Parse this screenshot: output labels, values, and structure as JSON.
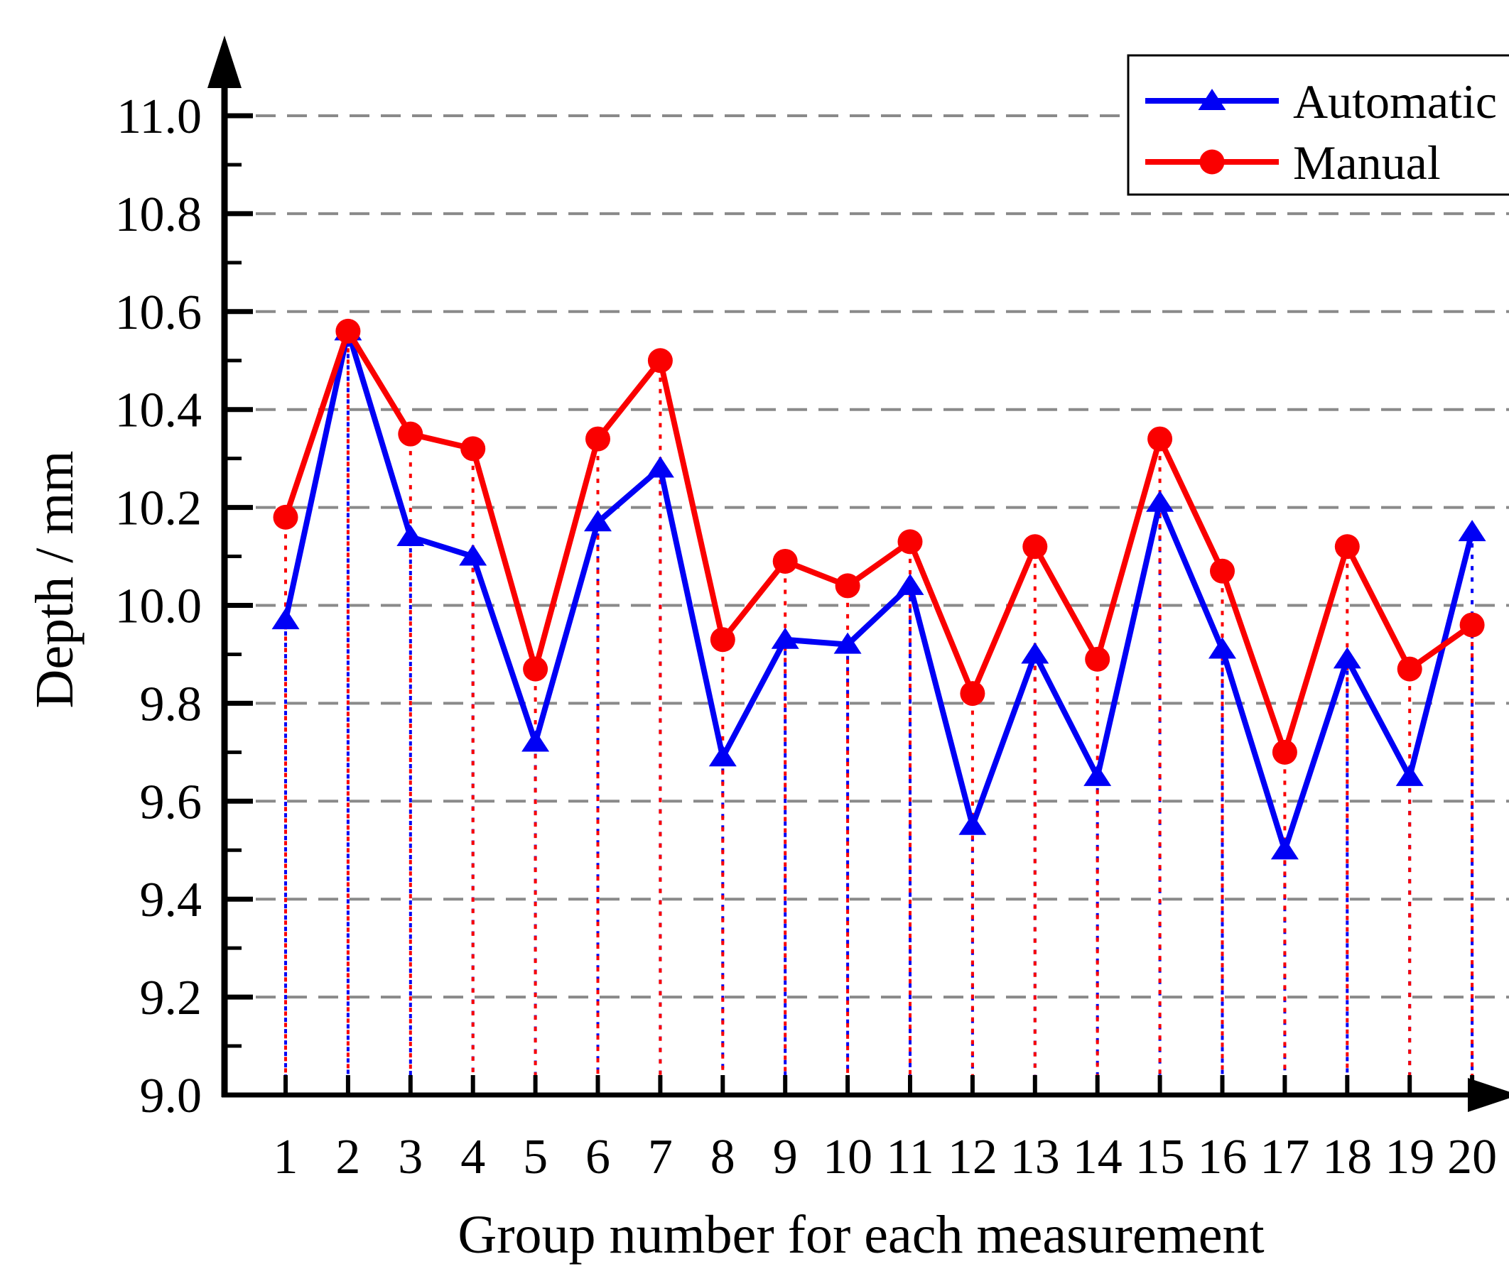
{
  "chart_data": {
    "type": "line",
    "title": "",
    "xlabel": "Group number for each measurement",
    "ylabel": "Depth / mm",
    "x": [
      1,
      2,
      3,
      4,
      5,
      6,
      7,
      8,
      9,
      10,
      11,
      12,
      13,
      14,
      15,
      16,
      17,
      18,
      19,
      20
    ],
    "series": [
      {
        "name": "Automatic",
        "color": "#0000f5",
        "marker": "triangle",
        "values": [
          9.97,
          10.56,
          10.14,
          10.1,
          9.72,
          10.17,
          10.28,
          9.69,
          9.93,
          9.92,
          10.04,
          9.55,
          9.9,
          9.65,
          10.21,
          9.91,
          9.5,
          9.89,
          9.65,
          10.15
        ]
      },
      {
        "name": "Manual",
        "color": "#fa0000",
        "marker": "circle",
        "values": [
          10.18,
          10.56,
          10.35,
          10.32,
          9.87,
          10.34,
          10.5,
          9.93,
          10.09,
          10.04,
          10.13,
          9.82,
          10.12,
          9.89,
          10.34,
          10.07,
          9.7,
          10.12,
          9.87,
          9.96
        ]
      }
    ],
    "ylim": [
      9.0,
      11.0
    ],
    "ytick_step": 0.2,
    "y_minor_tick_step": 0.1,
    "grid": "horizontal-dashed",
    "drop_lines": "dotted vertical from each point to x-axis",
    "legend_position": "top-right"
  },
  "axes": {
    "y_tick_labels": [
      "9.0",
      "9.2",
      "9.4",
      "9.6",
      "9.8",
      "10.0",
      "10.2",
      "10.4",
      "10.6",
      "10.8",
      "11.0"
    ],
    "x_tick_labels": [
      "1",
      "2",
      "3",
      "4",
      "5",
      "6",
      "7",
      "8",
      "9",
      "10",
      "11",
      "12",
      "13",
      "14",
      "15",
      "16",
      "17",
      "18",
      "19",
      "20"
    ]
  },
  "legend": {
    "items": [
      {
        "label": "Automatic",
        "color": "#0000f5",
        "marker": "triangle"
      },
      {
        "label": "Manual",
        "color": "#fa0000",
        "marker": "circle"
      }
    ]
  },
  "colors": {
    "gridline": "#8a8a8a",
    "axis": "#000000",
    "background": "#ffffff",
    "legend_border": "#000000"
  }
}
